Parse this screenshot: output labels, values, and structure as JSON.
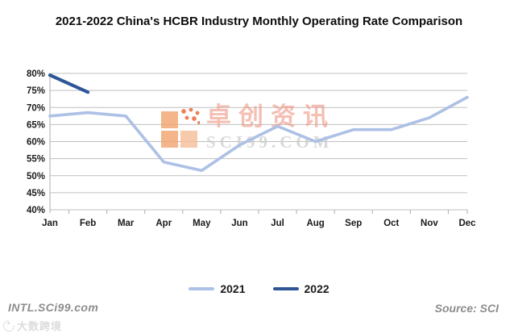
{
  "page": {
    "background": "#ffffff"
  },
  "chart_data": {
    "type": "line",
    "title": "2021-2022  China's HCBR Industry Monthly Operating Rate Comparison",
    "categories": [
      "Jan",
      "Feb",
      "Mar",
      "Apr",
      "May",
      "Jun",
      "Jul",
      "Aug",
      "Sep",
      "Oct",
      "Nov",
      "Dec"
    ],
    "series": [
      {
        "name": "2021",
        "color": "#ADC0E5",
        "stroke_width": 3.6,
        "values": [
          67.5,
          68.5,
          67.5,
          54,
          51.5,
          59,
          64.5,
          60,
          63.5,
          63.5,
          67,
          73
        ]
      },
      {
        "name": "2022",
        "color": "#2E5697",
        "stroke_width": 4.2,
        "values": [
          79.5,
          74.5
        ]
      }
    ],
    "ylabel": "",
    "xlabel": "",
    "ylim": [
      40,
      80
    ],
    "ytick_step": 5,
    "ytick_suffix": "%",
    "grid": "horizontal",
    "gridline_color": "#BFBFBF",
    "axis_line_color": "#ADADAD",
    "axis_text_color": "#1A1A1A",
    "legend_position": "bottom"
  },
  "center_watermark": {
    "logo_icon": "sci-orange-squares-logo",
    "cn_text": "卓创资讯",
    "domain_text": "SCI99.COM"
  },
  "footer": {
    "site_label": "INTL.SCi99.com",
    "source_label": "Source: SCI",
    "watermark_text": "大数跨境"
  }
}
